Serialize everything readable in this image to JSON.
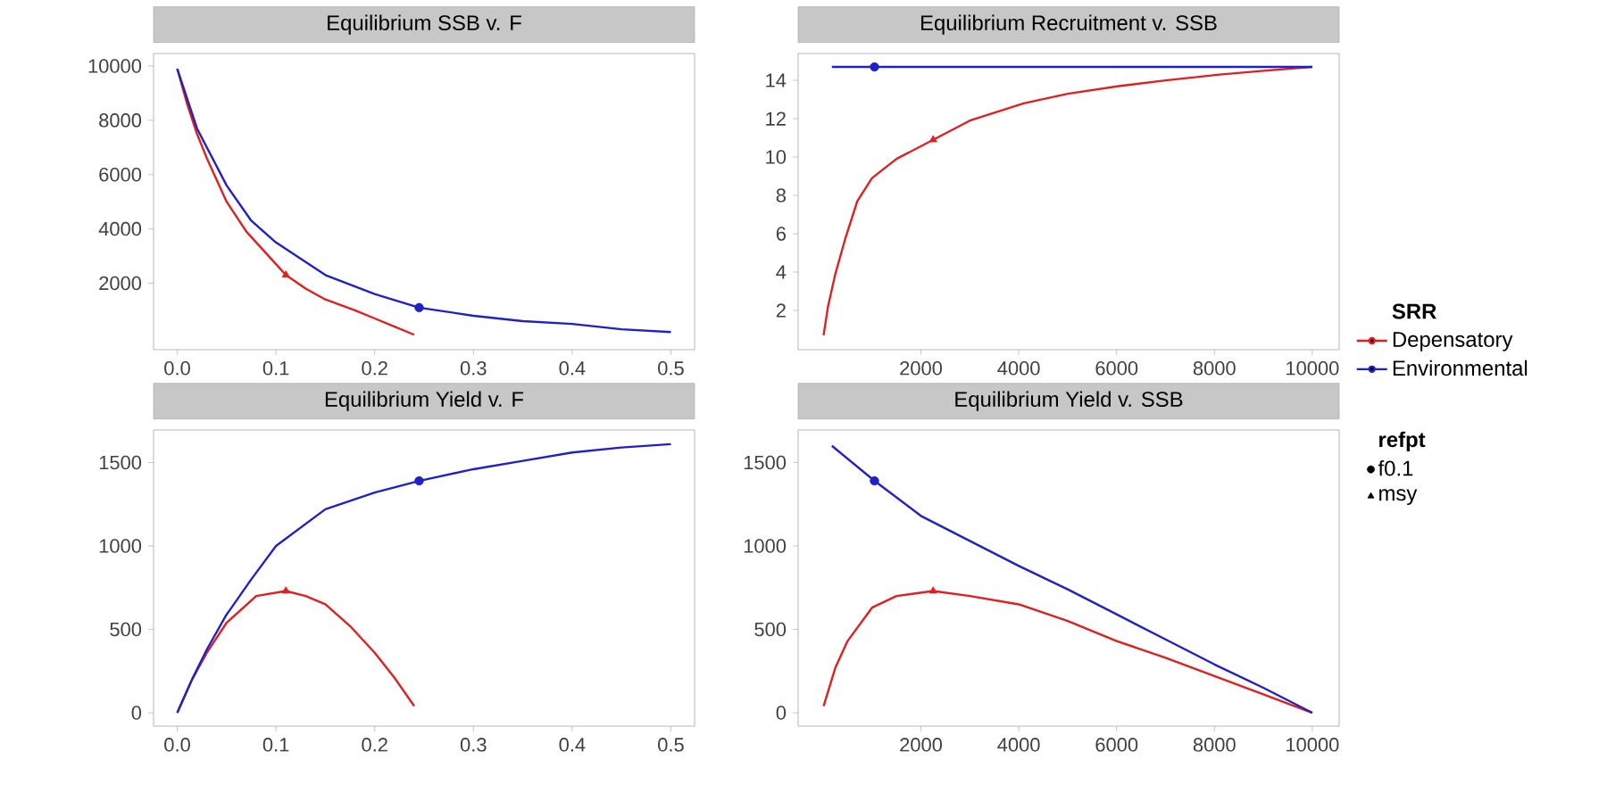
{
  "chart_data": [
    {
      "type": "line",
      "title": "Equilibrium SSB v. F",
      "xlim": [
        -0.024,
        0.524
      ],
      "xticks": [
        {
          "value": 0,
          "label": "0.0"
        },
        0.1,
        0.2,
        0.3,
        0.4,
        0.5
      ],
      "ylim": [
        -450,
        10460
      ],
      "yticks": [
        2000,
        4000,
        6000,
        8000,
        10000
      ],
      "series": [
        {
          "color": "#e02020",
          "x": [
            0,
            0.01,
            0.02,
            0.03,
            0.05,
            0.07,
            0.1,
            0.11,
            0.13,
            0.15,
            0.18,
            0.2,
            0.22,
            0.24
          ],
          "values": [
            9900,
            8600,
            7500,
            6600,
            5000,
            3900,
            2700,
            2300,
            1800,
            1400,
            1000,
            700,
            400,
            100
          ]
        },
        {
          "color": "#2020c8",
          "x": [
            0,
            0.02,
            0.05,
            0.075,
            0.1,
            0.15,
            0.2,
            0.245,
            0.3,
            0.35,
            0.4,
            0.45,
            0.5
          ],
          "values": [
            9900,
            7700,
            5600,
            4300,
            3500,
            2300,
            1600,
            1100,
            800,
            600,
            500,
            300,
            200
          ]
        },
        {
          "type": "scatter",
          "marker": "circle",
          "x": [
            0.245
          ],
          "values": [
            1100
          ],
          "colors": [
            "#2020c8"
          ]
        },
        {
          "type": "scatter",
          "marker": "triangle",
          "x": [
            0.11
          ],
          "values": [
            2300
          ],
          "colors": [
            "#e02020"
          ]
        }
      ]
    },
    {
      "type": "line",
      "title": "Equilibrium Recruitment v. SSB",
      "xlim": [
        -510,
        10550
      ],
      "xticks": [
        2000,
        4000,
        6000,
        8000,
        10000
      ],
      "ylim": [
        -0.05,
        15.4
      ],
      "yticks": [
        2,
        4,
        6,
        8,
        10,
        12,
        14
      ],
      "legend": "bottom right",
      "legend_title": "SRR",
      "series": [
        {
          "name": "Depensatory",
          "color": "#e02020",
          "x": [
            10,
            100,
            250,
            460,
            700,
            1000,
            1500,
            2250,
            3000,
            4100,
            5000,
            6050,
            7000,
            8100,
            9000,
            10000
          ],
          "values": [
            0.7,
            2.2,
            3.9,
            5.8,
            7.7,
            8.9,
            9.9,
            10.9,
            11.9,
            12.8,
            13.3,
            13.7,
            14.0,
            14.3,
            14.5,
            14.7
          ]
        },
        {
          "name": "Environmental",
          "color": "#2020c8",
          "x": [
            180,
            10000
          ],
          "values": [
            14.7,
            14.7
          ]
        },
        {
          "type": "scatter",
          "marker": "circle",
          "x": [
            1050
          ],
          "values": [
            14.7
          ],
          "colors": [
            "#2020c8"
          ]
        },
        {
          "type": "scatter",
          "marker": "triangle",
          "x": [
            2250
          ],
          "values": [
            10.9
          ],
          "colors": [
            "#e02020"
          ]
        }
      ]
    },
    {
      "type": "line",
      "title": "Equilibrium Yield v. F",
      "xlim": [
        -0.024,
        0.524
      ],
      "xticks": [
        {
          "value": 0,
          "label": "0.0"
        },
        0.1,
        0.2,
        0.3,
        0.4,
        0.5
      ],
      "ylim": [
        -80,
        1695
      ],
      "yticks": [
        0,
        500,
        1000,
        1500
      ],
      "series": [
        {
          "color": "#e02020",
          "x": [
            0,
            0.015,
            0.03,
            0.05,
            0.08,
            0.11,
            0.13,
            0.15,
            0.175,
            0.2,
            0.22,
            0.24
          ],
          "values": [
            0,
            200,
            360,
            540,
            700,
            730,
            700,
            650,
            520,
            360,
            210,
            40
          ]
        },
        {
          "color": "#2020c8",
          "x": [
            0,
            0.015,
            0.03,
            0.049,
            0.075,
            0.1,
            0.15,
            0.2,
            0.245,
            0.3,
            0.35,
            0.4,
            0.45,
            0.5
          ],
          "values": [
            0,
            200,
            380,
            580,
            800,
            1000,
            1220,
            1320,
            1390,
            1460,
            1510,
            1560,
            1590,
            1610
          ]
        },
        {
          "type": "scatter",
          "marker": "circle",
          "x": [
            0.245
          ],
          "values": [
            1390
          ],
          "colors": [
            "#2020c8"
          ]
        },
        {
          "type": "scatter",
          "marker": "triangle",
          "x": [
            0.11
          ],
          "values": [
            730
          ],
          "colors": [
            "#e02020"
          ]
        }
      ]
    },
    {
      "type": "line",
      "title": "Equilibrium Yield v. SSB",
      "xlim": [
        -510,
        10550
      ],
      "xticks": [
        2000,
        4000,
        6000,
        8000,
        10000
      ],
      "ylim": [
        -80,
        1695
      ],
      "yticks": [
        0,
        500,
        1000,
        1500
      ],
      "legend": "top right",
      "legend_title": "refpt",
      "series": [
        {
          "color": "#e02020",
          "x": [
            10,
            250,
            500,
            1000,
            1500,
            2250,
            3000,
            4000,
            5000,
            6000,
            7000,
            8000,
            9000,
            10000
          ],
          "values": [
            40,
            270,
            430,
            630,
            700,
            730,
            700,
            650,
            550,
            430,
            330,
            220,
            110,
            0
          ]
        },
        {
          "color": "#2020c8",
          "x": [
            180,
            1050,
            2000,
            3000,
            4000,
            5000,
            6000,
            7000,
            8000,
            9000,
            10000
          ],
          "values": [
            1600,
            1390,
            1180,
            1030,
            880,
            740,
            590,
            440,
            290,
            150,
            0
          ]
        },
        {
          "name": "f0.1",
          "type": "scatter",
          "marker": "circle",
          "x": [
            1050
          ],
          "values": [
            1390
          ],
          "colors": [
            "#2020c8"
          ]
        },
        {
          "name": "msy",
          "type": "scatter",
          "marker": "triangle",
          "x": [
            2250
          ],
          "values": [
            730
          ],
          "colors": [
            "#e02020"
          ]
        }
      ]
    }
  ]
}
